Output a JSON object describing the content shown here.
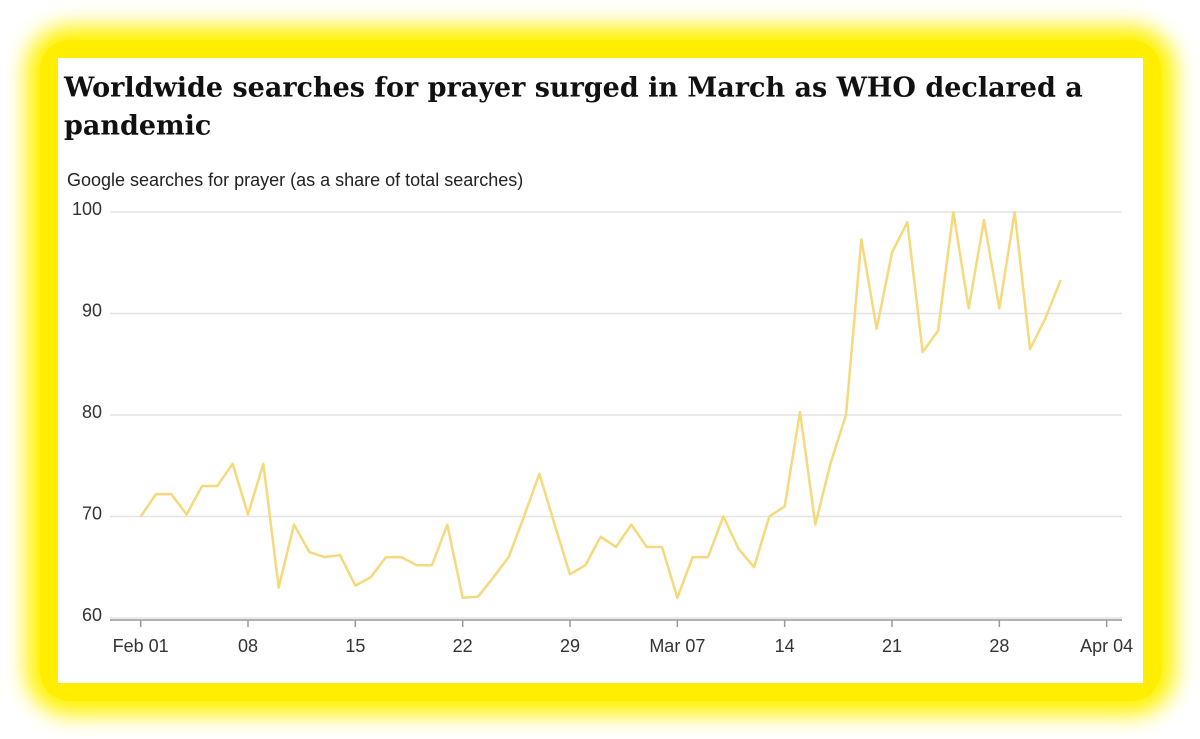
{
  "chart_data": {
    "type": "line",
    "title": [
      "Worldwide searches for prayer surged in March as WHO declared a",
      "pandemic"
    ],
    "subtitle": "Google searches for prayer (as a share of total searches)",
    "x": [
      "Feb 01",
      "Feb 02",
      "Feb 03",
      "Feb 04",
      "Feb 05",
      "Feb 06",
      "Feb 07",
      "Feb 08",
      "Feb 09",
      "Feb 10",
      "Feb 11",
      "Feb 12",
      "Feb 13",
      "Feb 14",
      "Feb 15",
      "Feb 16",
      "Feb 17",
      "Feb 18",
      "Feb 19",
      "Feb 20",
      "Feb 21",
      "Feb 22",
      "Feb 23",
      "Feb 24",
      "Feb 25",
      "Feb 26",
      "Feb 27",
      "Feb 28",
      "Feb 29",
      "Mar 01",
      "Mar 02",
      "Mar 03",
      "Mar 04",
      "Mar 05",
      "Mar 06",
      "Mar 07",
      "Mar 08",
      "Mar 09",
      "Mar 10",
      "Mar 11",
      "Mar 12",
      "Mar 13",
      "Mar 14",
      "Mar 15",
      "Mar 16",
      "Mar 17",
      "Mar 18",
      "Mar 19",
      "Mar 20",
      "Mar 21",
      "Mar 22",
      "Mar 23",
      "Mar 24",
      "Mar 25",
      "Mar 26",
      "Mar 27",
      "Mar 28",
      "Mar 29",
      "Mar 30",
      "Mar 31",
      "Apr 01"
    ],
    "series": [
      {
        "name": "Google searches for prayer",
        "color": "#f5d97c",
        "values": [
          70,
          72.2,
          72.2,
          70.2,
          73,
          73,
          75.2,
          70.2,
          75.2,
          63,
          69.2,
          66.5,
          66,
          66.2,
          63.2,
          64,
          66,
          66,
          65.2,
          65.2,
          69.2,
          62,
          62.1,
          64,
          66,
          70,
          74.2,
          69.2,
          64.3,
          65.2,
          68,
          67,
          69.2,
          67,
          67,
          62,
          66,
          66,
          70,
          66.8,
          65,
          70,
          71,
          80.3,
          69.2,
          75.3,
          80,
          97.3,
          88.5,
          96,
          99,
          86.2,
          88.3,
          100,
          90.5,
          99.2,
          90.5,
          100,
          86.5,
          89.5,
          93.3
        ]
      }
    ],
    "xlim": [
      "Jan 30",
      "Apr 05"
    ],
    "xticks": [
      "Feb 01",
      {
        "value": "Feb 08",
        "label": "08"
      },
      {
        "value": "Feb 15",
        "label": "15"
      },
      {
        "value": "Feb 22",
        "label": "22"
      },
      {
        "value": "Feb 29",
        "label": "29"
      },
      "Mar 07",
      {
        "value": "Mar 14",
        "label": "14"
      },
      {
        "value": "Mar 21",
        "label": "21"
      },
      {
        "value": "Mar 28",
        "label": "28"
      },
      "Apr 04"
    ],
    "ylim": [
      60,
      100
    ],
    "yticks": [
      60,
      70,
      80,
      90,
      100
    ],
    "grid": true
  }
}
